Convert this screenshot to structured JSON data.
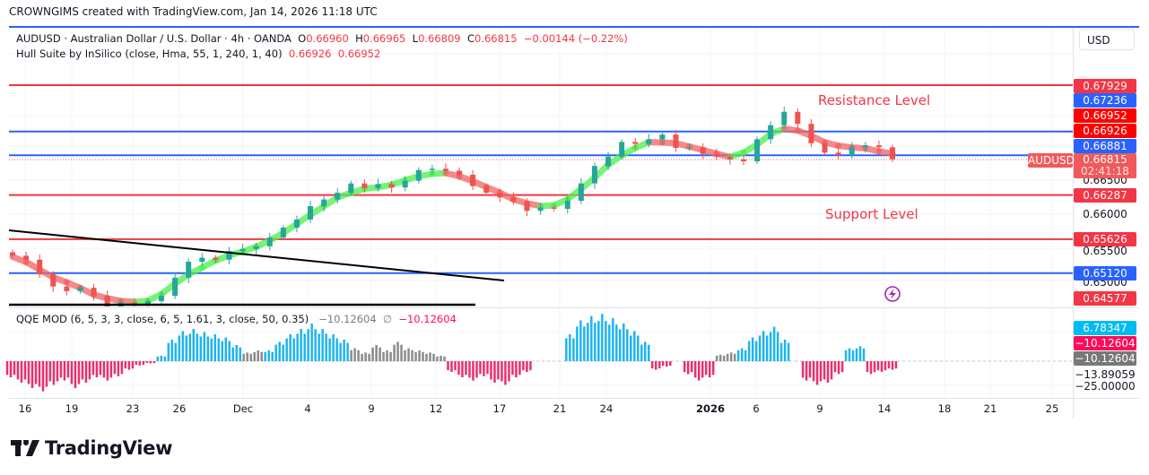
{
  "header": {
    "created_by": "CROWNGIMS created with TradingView.com, Jan 14, 2026 11:18 UTC"
  },
  "legend": {
    "symbol": "AUDUSD · Australian Dollar / U.S. Dollar · 4h · OANDA",
    "o_label": "O",
    "o": "0.66960",
    "h_label": "H",
    "h": "0.66965",
    "l_label": "L",
    "l": "0.66809",
    "c_label": "C",
    "c": "0.66815",
    "change": "−0.00144 (−0.22%)",
    "hull_name": "Hull Suite by InSilico (close, Hma, 55, 1, 240, 1, 40)",
    "hull_v1": "0.66926",
    "hull_v2": "0.66952",
    "qqe_name": "QQE MOD (6, 5, 3, 3, close, 6, 5, 1.61, 3, close, 50, 0.35)",
    "qqe_v1": "−10.12604",
    "qqe_sep": "∅",
    "qqe_v2": "−10.12604"
  },
  "currency_button": "USD",
  "symbol_tag": "AUDUSD",
  "annotations": {
    "resistance": "Resistance Level",
    "support": "Support Level"
  },
  "price_axis": [
    {
      "text": "0.67929",
      "color": "#f23645"
    },
    {
      "text": "0.67236",
      "color": "#2962ff"
    },
    {
      "text": "0.66952",
      "color": "#ff0000"
    },
    {
      "text": "0.66926",
      "color": "#ff0000"
    },
    {
      "text": "0.66881",
      "color": "#2962ff"
    },
    {
      "text": "0.66500",
      "color": ""
    },
    {
      "text": "0.66287",
      "color": "#f23645"
    },
    {
      "text": "0.66000",
      "color": ""
    },
    {
      "text": "0.65500",
      "color": ""
    },
    {
      "text": "0.65626",
      "color": "#f23645"
    },
    {
      "text": "0.65000",
      "color": ""
    },
    {
      "text": "0.65120",
      "color": "#2962ff"
    },
    {
      "text": "0.64577",
      "color": "#f23645"
    }
  ],
  "last_price": {
    "price": "0.66815",
    "countdown": "02:41:18",
    "color": "#f05a5a"
  },
  "qqe_axis": [
    {
      "text": "6.78347",
      "color": "#00bcf2"
    },
    {
      "text": "−10.12604",
      "color": "#ff0a5a"
    },
    {
      "text": "−10.12604",
      "color": "#787878"
    },
    {
      "text": "−13.89059",
      "color": ""
    },
    {
      "text": "−25.00000",
      "color": ""
    }
  ],
  "x_axis": [
    "16",
    "19",
    "23",
    "26",
    "Dec",
    "4",
    "9",
    "12",
    "17",
    "21",
    "24",
    "2026",
    "6",
    "9",
    "14",
    "18",
    "21",
    "25"
  ],
  "branding": "TradingView",
  "chart_data": {
    "type": "candlestick",
    "symbol": "AUDUSD",
    "timeframe": "4h",
    "ylim": [
      0.644,
      0.683
    ],
    "grid": true,
    "horizontal_levels": [
      {
        "price": 0.67929,
        "color": "#f23645"
      },
      {
        "price": 0.67236,
        "color": "#2962ff"
      },
      {
        "price": 0.66881,
        "color": "#2962ff"
      },
      {
        "price": 0.66287,
        "color": "#f23645"
      },
      {
        "price": 0.65626,
        "color": "#f23645"
      },
      {
        "price": 0.6512,
        "color": "#2962ff"
      },
      {
        "price": 0.64577,
        "color": "#f23645"
      }
    ],
    "last_price": 0.66815,
    "closes": [
      0.6538,
      0.6532,
      0.651,
      0.6492,
      0.6485,
      0.649,
      0.6478,
      0.6462,
      0.6468,
      0.6465,
      0.647,
      0.6478,
      0.6505,
      0.6529,
      0.6535,
      0.6532,
      0.6545,
      0.6548,
      0.6552,
      0.6565,
      0.658,
      0.6592,
      0.6612,
      0.6622,
      0.6632,
      0.6646,
      0.6639,
      0.6645,
      0.664,
      0.665,
      0.6666,
      0.6668,
      0.6665,
      0.6659,
      0.6642,
      0.6632,
      0.6625,
      0.6619,
      0.6605,
      0.661,
      0.6608,
      0.662,
      0.6646,
      0.6672,
      0.6686,
      0.6708,
      0.6705,
      0.6712,
      0.6719,
      0.6699,
      0.67,
      0.669,
      0.6686,
      0.6682,
      0.6679,
      0.6712,
      0.6733,
      0.6753,
      0.6735,
      0.6706,
      0.6692,
      0.6688,
      0.67,
      0.6703,
      0.67,
      0.6682
    ],
    "colors": {
      "up": "#26a69a",
      "down": "#ef5350",
      "hull_up": "#4cf04c",
      "hull_down": "#f26464",
      "qqe_blue": "#1eb4f0",
      "qqe_red": "#e9306e",
      "qqe_grey": "#8a8a8a"
    },
    "qqe_histogram": [
      [
        -15,
        "red"
      ],
      [
        -20,
        "red"
      ],
      [
        -25,
        "red"
      ],
      [
        -28,
        "red"
      ],
      [
        -22,
        "red"
      ],
      [
        -18,
        "red"
      ],
      [
        -25,
        "red"
      ],
      [
        -20,
        "red"
      ],
      [
        -15,
        "red"
      ],
      [
        -18,
        "red"
      ],
      [
        -14,
        "red"
      ],
      [
        -8,
        "red"
      ],
      [
        -4,
        "red"
      ],
      [
        -2,
        "red"
      ],
      [
        5,
        "blue"
      ],
      [
        20,
        "blue"
      ],
      [
        28,
        "blue"
      ],
      [
        30,
        "blue"
      ],
      [
        27,
        "blue"
      ],
      [
        25,
        "blue"
      ],
      [
        22,
        "blue"
      ],
      [
        15,
        "blue"
      ],
      [
        8,
        "grey"
      ],
      [
        10,
        "grey"
      ],
      [
        10,
        "blue"
      ],
      [
        18,
        "blue"
      ],
      [
        25,
        "blue"
      ],
      [
        30,
        "blue"
      ],
      [
        35,
        "blue"
      ],
      [
        30,
        "blue"
      ],
      [
        25,
        "blue"
      ],
      [
        20,
        "blue"
      ],
      [
        12,
        "grey"
      ],
      [
        8,
        "grey"
      ],
      [
        15,
        "grey"
      ],
      [
        10,
        "grey"
      ],
      [
        18,
        "grey"
      ],
      [
        12,
        "grey"
      ],
      [
        10,
        "grey"
      ],
      [
        8,
        "grey"
      ],
      [
        5,
        "grey"
      ],
      [
        -10,
        "red"
      ],
      [
        -15,
        "red"
      ],
      [
        -18,
        "red"
      ],
      [
        -14,
        "red"
      ],
      [
        -20,
        "red"
      ],
      [
        -22,
        "red"
      ],
      [
        -15,
        "red"
      ],
      [
        -10,
        "red"
      ],
      [
        0,
        "grey"
      ],
      [
        0,
        "grey"
      ],
      [
        0,
        "grey"
      ],
      [
        25,
        "blue"
      ],
      [
        38,
        "blue"
      ],
      [
        42,
        "blue"
      ],
      [
        44,
        "blue"
      ],
      [
        40,
        "blue"
      ],
      [
        35,
        "blue"
      ],
      [
        28,
        "blue"
      ],
      [
        18,
        "blue"
      ],
      [
        -8,
        "red"
      ],
      [
        -5,
        "red"
      ],
      [
        0,
        "grey"
      ],
      [
        -12,
        "red"
      ],
      [
        -18,
        "red"
      ],
      [
        -15,
        "red"
      ],
      [
        6,
        "grey"
      ],
      [
        8,
        "grey"
      ],
      [
        12,
        "blue"
      ],
      [
        22,
        "blue"
      ],
      [
        28,
        "blue"
      ],
      [
        32,
        "blue"
      ],
      [
        20,
        "blue"
      ],
      [
        0,
        "grey"
      ],
      [
        -18,
        "red"
      ],
      [
        -22,
        "red"
      ],
      [
        -20,
        "red"
      ],
      [
        -12,
        "red"
      ],
      [
        12,
        "blue"
      ],
      [
        14,
        "blue"
      ],
      [
        -12,
        "red"
      ],
      [
        -10,
        "red"
      ],
      [
        -8,
        "red"
      ]
    ]
  }
}
